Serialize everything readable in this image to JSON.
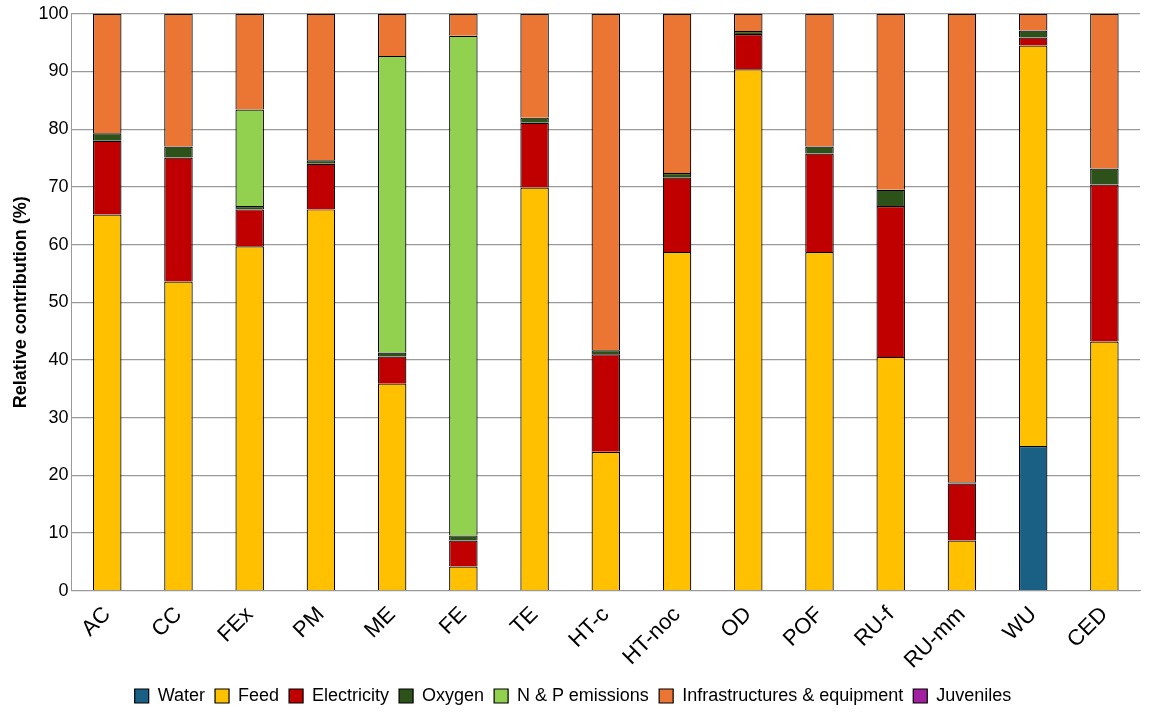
{
  "chart_data": {
    "type": "bar",
    "stacked": true,
    "ylabel": "Relative contribution (%)",
    "categories": [
      "AC",
      "CC",
      "FEx",
      "PM",
      "ME",
      "FE",
      "TE",
      "HT-c",
      "HT-noc",
      "OD",
      "POF",
      "RU-f",
      "RU-mm",
      "WU",
      "CED"
    ],
    "series": [
      {
        "name": "Water",
        "color": "#1a5f84",
        "values": [
          0,
          0,
          0,
          0,
          0,
          0,
          0,
          0,
          0,
          0,
          0,
          0,
          0,
          25.1,
          0
        ]
      },
      {
        "name": "Feed",
        "color": "#ffc000",
        "values": [
          65.2,
          53.6,
          59.7,
          66.1,
          35.9,
          4.2,
          69.9,
          24.1,
          58.7,
          90.4,
          58.7,
          40.5,
          8.7,
          69.4,
          43.2
        ]
      },
      {
        "name": "Electricity",
        "color": "#c00000",
        "values": [
          12.8,
          21.5,
          6.4,
          7.9,
          4.7,
          4.5,
          11.2,
          16.9,
          12.9,
          6.1,
          17.1,
          26.2,
          9.9,
          1.4,
          27.2
        ]
      },
      {
        "name": "Oxygen",
        "color": "#2c5219",
        "values": [
          1.3,
          1.9,
          0.6,
          0.6,
          0.7,
          0.9,
          0.9,
          0.7,
          0.8,
          0.5,
          1.2,
          2.8,
          0.2,
          1.2,
          2.8
        ]
      },
      {
        "name": "N & P emissions",
        "color": "#92d050",
        "values": [
          0,
          0,
          16.7,
          0,
          51.4,
          86.6,
          0,
          0,
          0,
          0,
          0,
          0,
          0,
          0,
          0
        ]
      },
      {
        "name": "Infrastructures & equipment",
        "color": "#eb7533",
        "values": [
          20.7,
          23.0,
          16.6,
          25.4,
          7.3,
          3.8,
          18.0,
          58.3,
          27.6,
          3.0,
          23.0,
          30.5,
          81.2,
          2.9,
          26.8
        ]
      },
      {
        "name": "Juveniles",
        "color": "#a020a0",
        "values": [
          0,
          0,
          0,
          0,
          0,
          0,
          0,
          0,
          0,
          0,
          0,
          0,
          0,
          0,
          0
        ]
      }
    ],
    "ylim": [
      0,
      100
    ],
    "yticks": [
      0,
      10,
      20,
      30,
      40,
      50,
      60,
      70,
      80,
      90,
      100
    ],
    "grid": "y",
    "legend": "bottom"
  }
}
